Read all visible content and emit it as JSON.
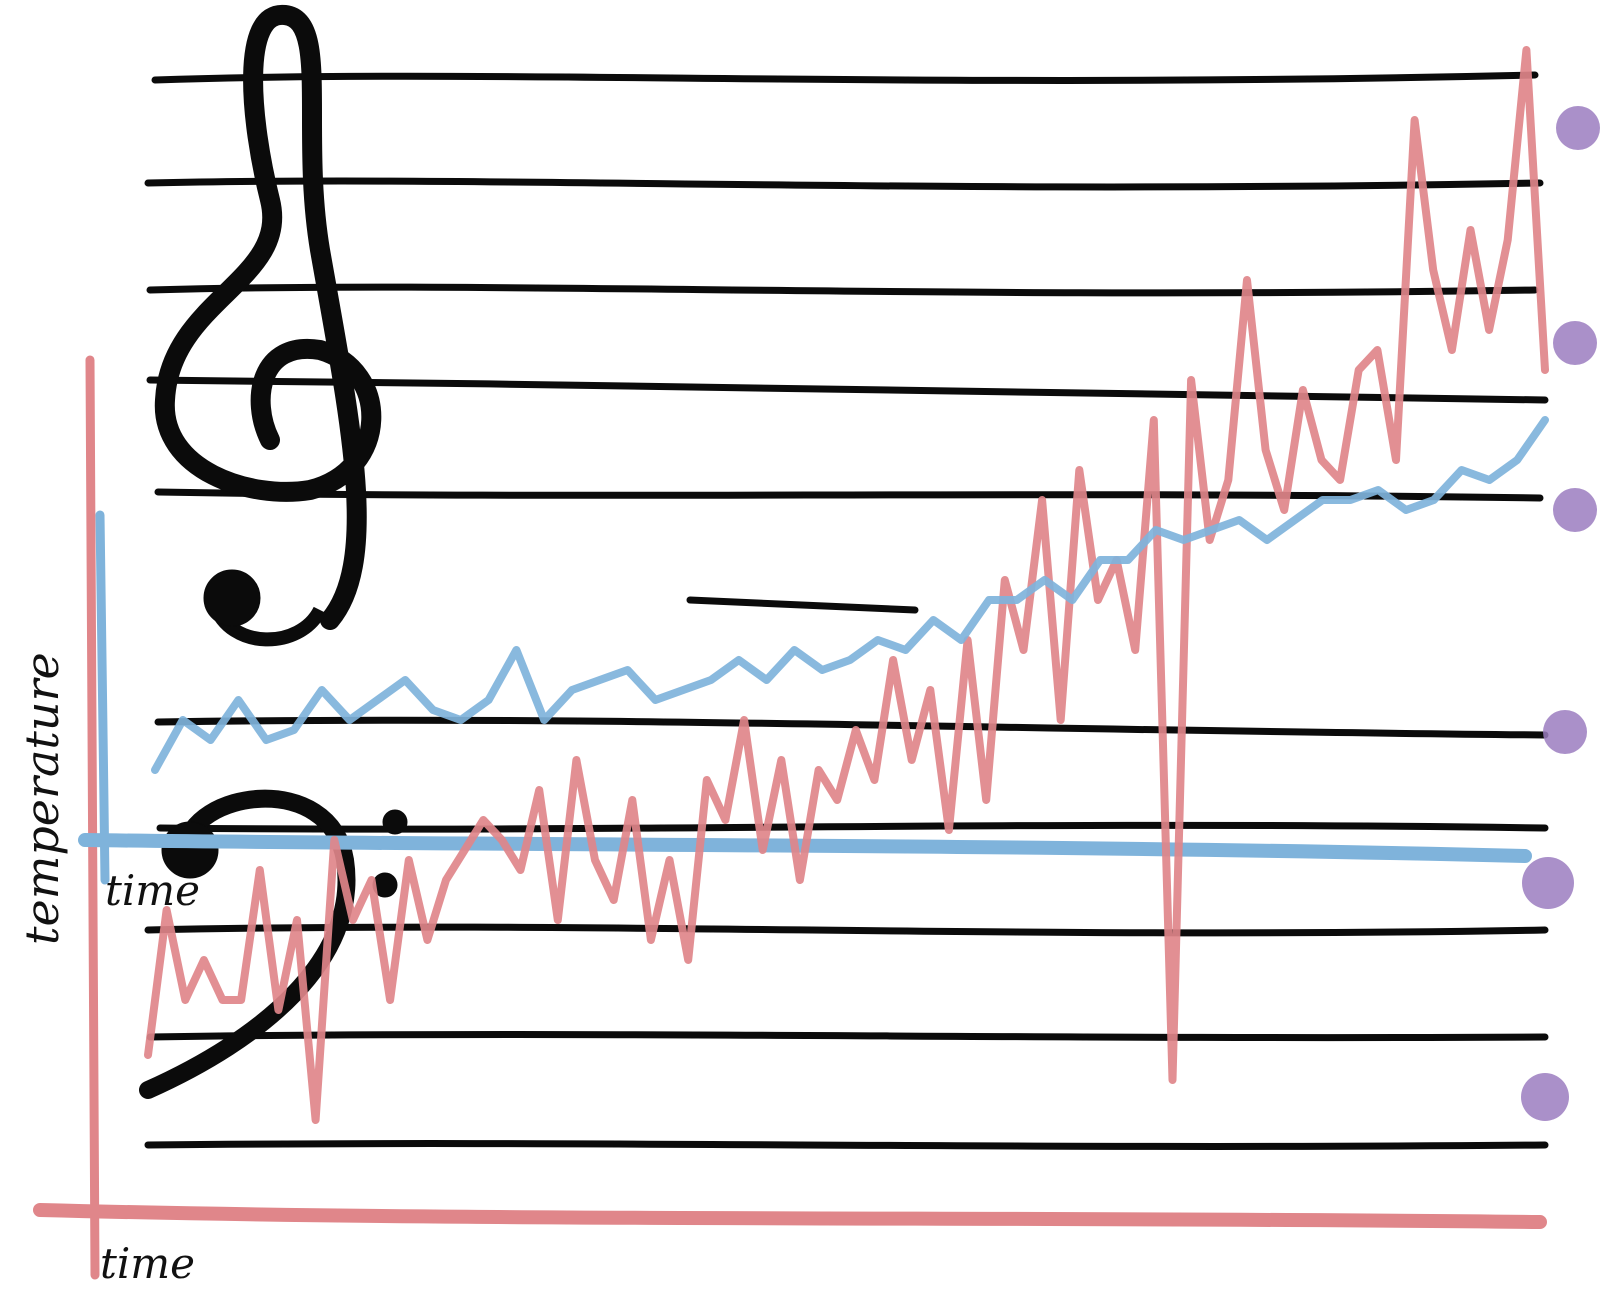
{
  "labels": {
    "y_axis": "temperature",
    "x_axis_top": "time",
    "x_axis_bottom": "time"
  },
  "colors": {
    "staff": "#0b0b0b",
    "red_series": "#e0868a",
    "blue_series": "#7fb3db",
    "dots": "#9b7cc0"
  },
  "chart_data": {
    "type": "line",
    "title": "",
    "xlabel": "time",
    "ylabel": "temperature",
    "grid": false,
    "legend": "none",
    "series": [
      {
        "color": "#e0868a",
        "values": [
          1055,
          910,
          1000,
          960,
          1000,
          1000,
          870,
          1010,
          920,
          1120,
          840,
          920,
          880,
          1000,
          860,
          940,
          880,
          850,
          820,
          840,
          870,
          790,
          920,
          760,
          860,
          900,
          800,
          940,
          860,
          960,
          780,
          820,
          720,
          850,
          760,
          880,
          770,
          800,
          730,
          780,
          660,
          760,
          690,
          830,
          640,
          800,
          580,
          650,
          500,
          720,
          470,
          600,
          560,
          650,
          420,
          1080,
          380,
          540,
          480,
          280,
          450,
          510,
          390,
          460,
          480,
          370,
          350,
          460,
          120,
          270,
          350,
          230,
          330,
          240,
          50,
          370
        ]
      },
      {
        "color": "#7fb3db",
        "values": [
          770,
          720,
          740,
          700,
          740,
          730,
          690,
          720,
          700,
          680,
          710,
          720,
          700,
          650,
          720,
          690,
          680,
          670,
          700,
          690,
          680,
          660,
          680,
          650,
          670,
          660,
          640,
          650,
          620,
          640,
          600,
          600,
          580,
          600,
          560,
          560,
          530,
          540,
          530,
          520,
          540,
          520,
          500,
          500,
          490,
          510,
          500,
          470,
          480,
          460,
          420
        ]
      }
    ]
  }
}
